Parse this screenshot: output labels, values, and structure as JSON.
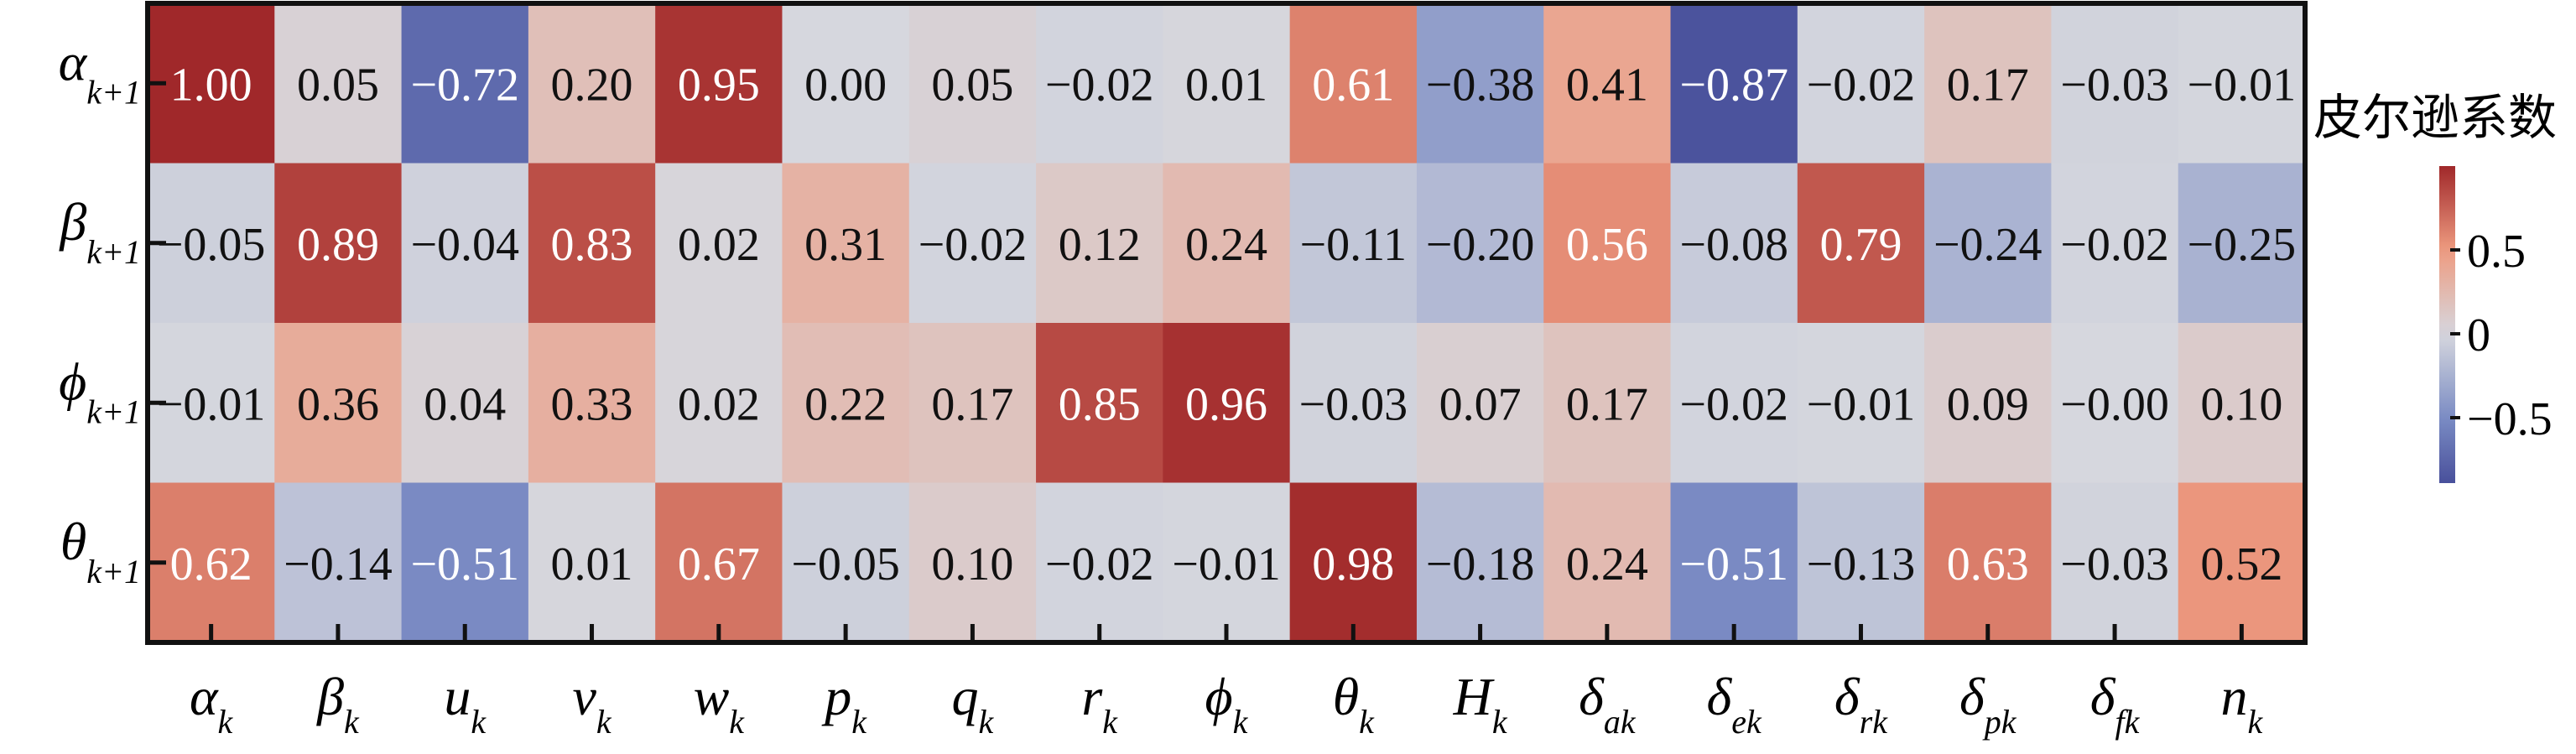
{
  "chart_data": {
    "type": "heatmap",
    "title": "",
    "xlabel": "",
    "ylabel": "",
    "colorbar": {
      "title": "皮尔逊系数",
      "ticks": [
        0.5,
        0,
        -0.5
      ],
      "tick_labels": [
        "0.5",
        "0",
        "−0.5"
      ],
      "range": [
        -0.89,
        1.0
      ],
      "colors": [
        "#3a3f8f",
        "#7b8cc4",
        "#d6d7de",
        "#ee9b80",
        "#a0282a"
      ]
    },
    "x_labels": [
      {
        "base": "α",
        "sub": "k"
      },
      {
        "base": "β",
        "sub": "k"
      },
      {
        "base": "u",
        "sub": "k"
      },
      {
        "base": "v",
        "sub": "k"
      },
      {
        "base": "w",
        "sub": "k"
      },
      {
        "base": "p",
        "sub": "k"
      },
      {
        "base": "q",
        "sub": "k"
      },
      {
        "base": "r",
        "sub": "k"
      },
      {
        "base": "ϕ",
        "sub": "k"
      },
      {
        "base": "θ",
        "sub": "k"
      },
      {
        "base": "H",
        "sub": "k"
      },
      {
        "base": "δ",
        "sub": "ak"
      },
      {
        "base": "δ",
        "sub": "ek"
      },
      {
        "base": "δ",
        "sub": "rk"
      },
      {
        "base": "δ",
        "sub": "pk"
      },
      {
        "base": "δ",
        "sub": "fk"
      },
      {
        "base": "n",
        "sub": "k"
      }
    ],
    "y_labels": [
      {
        "base": "α",
        "sub": "k+1"
      },
      {
        "base": "β",
        "sub": "k+1"
      },
      {
        "base": "ϕ",
        "sub": "k+1"
      },
      {
        "base": "θ",
        "sub": "k+1"
      }
    ],
    "values": [
      [
        1.0,
        0.05,
        -0.72,
        0.2,
        0.95,
        0.0,
        0.05,
        -0.02,
        0.01,
        0.61,
        -0.38,
        0.41,
        -0.87,
        -0.02,
        0.17,
        -0.03,
        -0.01
      ],
      [
        -0.05,
        0.89,
        -0.04,
        0.83,
        0.02,
        0.31,
        -0.02,
        0.12,
        0.24,
        -0.11,
        -0.2,
        0.56,
        -0.08,
        0.79,
        -0.24,
        -0.02,
        -0.25
      ],
      [
        -0.01,
        0.36,
        0.04,
        0.33,
        0.02,
        0.22,
        0.17,
        0.85,
        0.96,
        -0.03,
        0.07,
        0.17,
        -0.02,
        -0.01,
        0.09,
        -0.0,
        0.1
      ],
      [
        0.62,
        -0.14,
        -0.51,
        0.01,
        0.67,
        -0.05,
        0.1,
        -0.02,
        -0.01,
        0.98,
        -0.18,
        0.24,
        -0.51,
        -0.13,
        0.63,
        -0.03,
        0.52
      ]
    ]
  }
}
